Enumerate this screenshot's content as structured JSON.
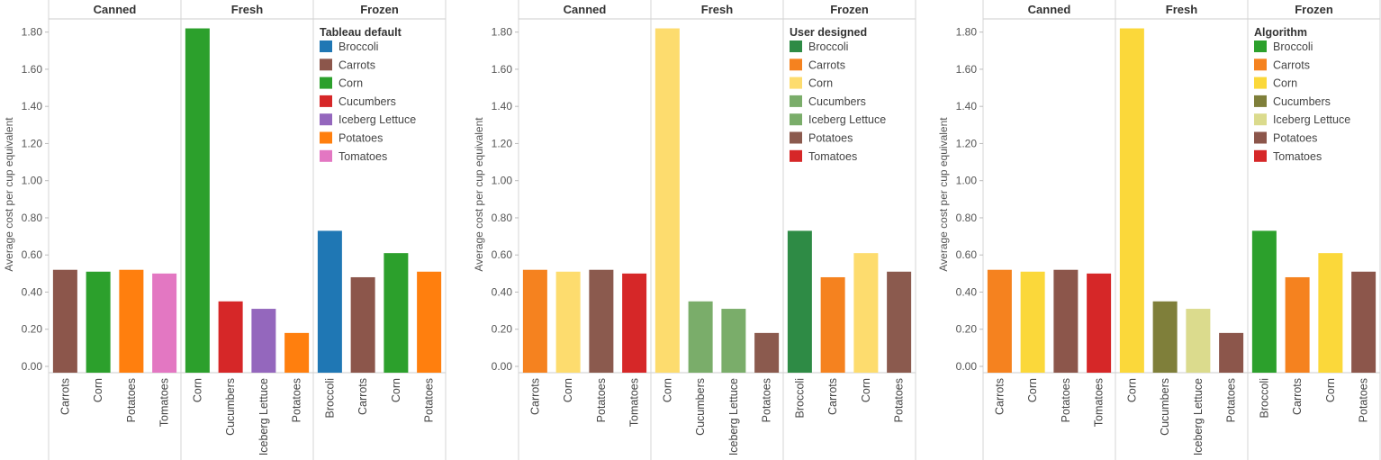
{
  "chart_data": [
    {
      "type": "bar",
      "groups": [
        "Canned",
        "Fresh",
        "Frozen"
      ],
      "categories": [
        [
          "Carrots",
          "Corn",
          "Potatoes",
          "Tomatoes"
        ],
        [
          "Corn",
          "Cucumbers",
          "Iceberg Lettuce",
          "Potatoes"
        ],
        [
          "Broccoli",
          "Carrots",
          "Corn",
          "Potatoes"
        ]
      ],
      "values": [
        [
          0.52,
          0.51,
          0.52,
          0.5
        ],
        [
          1.82,
          0.35,
          0.31,
          0.18
        ],
        [
          0.73,
          0.48,
          0.61,
          0.51
        ]
      ],
      "ylabel": "Average cost per cup equivalent",
      "ylim": [
        0,
        1.9
      ],
      "yticks": [
        "0.00",
        "0.20",
        "0.40",
        "0.60",
        "0.80",
        "1.00",
        "1.20",
        "1.40",
        "1.60",
        "1.80"
      ],
      "legend": {
        "title": "Tableau default",
        "placement": "top-right",
        "entries": [
          "Broccoli",
          "Carrots",
          "Corn",
          "Cucumbers",
          "Iceberg Lettuce",
          "Potatoes",
          "Tomatoes"
        ],
        "colors": [
          "#1f77b4",
          "#8c564b",
          "#2ca02c",
          "#d62728",
          "#9467bd",
          "#ff7f0e",
          "#e377c2"
        ]
      }
    },
    {
      "type": "bar",
      "groups": [
        "Canned",
        "Fresh",
        "Frozen"
      ],
      "categories": [
        [
          "Carrots",
          "Corn",
          "Potatoes",
          "Tomatoes"
        ],
        [
          "Corn",
          "Cucumbers",
          "Iceberg Lettuce",
          "Potatoes"
        ],
        [
          "Broccoli",
          "Carrots",
          "Corn",
          "Potatoes"
        ]
      ],
      "values": [
        [
          0.52,
          0.51,
          0.52,
          0.5
        ],
        [
          1.82,
          0.35,
          0.31,
          0.18
        ],
        [
          0.73,
          0.48,
          0.61,
          0.51
        ]
      ],
      "ylabel": "Average cost per cup equivalent",
      "ylim": [
        0,
        1.9
      ],
      "yticks": [
        "0.00",
        "0.20",
        "0.40",
        "0.60",
        "0.80",
        "1.00",
        "1.20",
        "1.40",
        "1.60",
        "1.80"
      ],
      "legend": {
        "title": "User designed",
        "placement": "top-right",
        "entries": [
          "Broccoli",
          "Carrots",
          "Corn",
          "Cucumbers",
          "Iceberg Lettuce",
          "Potatoes",
          "Tomatoes"
        ],
        "colors": [
          "#2e8b45",
          "#f5821f",
          "#fddc6e",
          "#7aad6a",
          "#7aad6a",
          "#8b5a4e",
          "#d62728"
        ]
      }
    },
    {
      "type": "bar",
      "groups": [
        "Canned",
        "Fresh",
        "Frozen"
      ],
      "categories": [
        [
          "Carrots",
          "Corn",
          "Potatoes",
          "Tomatoes"
        ],
        [
          "Corn",
          "Cucumbers",
          "Iceberg Lettuce",
          "Potatoes"
        ],
        [
          "Broccoli",
          "Carrots",
          "Corn",
          "Potatoes"
        ]
      ],
      "values": [
        [
          0.52,
          0.51,
          0.52,
          0.5
        ],
        [
          1.82,
          0.35,
          0.31,
          0.18
        ],
        [
          0.73,
          0.48,
          0.61,
          0.51
        ]
      ],
      "ylabel": "Average cost per cup equivalent",
      "ylim": [
        0,
        1.9
      ],
      "yticks": [
        "0.00",
        "0.20",
        "0.40",
        "0.60",
        "0.80",
        "1.00",
        "1.20",
        "1.40",
        "1.60",
        "1.80"
      ],
      "legend": {
        "title": "Algorithm",
        "placement": "top-right",
        "entries": [
          "Broccoli",
          "Carrots",
          "Corn",
          "Cucumbers",
          "Iceberg Lettuce",
          "Potatoes",
          "Tomatoes"
        ],
        "colors": [
          "#2ca02c",
          "#f5821f",
          "#fbd83a",
          "#7f7f3a",
          "#dbdb8d",
          "#8c564b",
          "#d62728"
        ]
      }
    }
  ]
}
